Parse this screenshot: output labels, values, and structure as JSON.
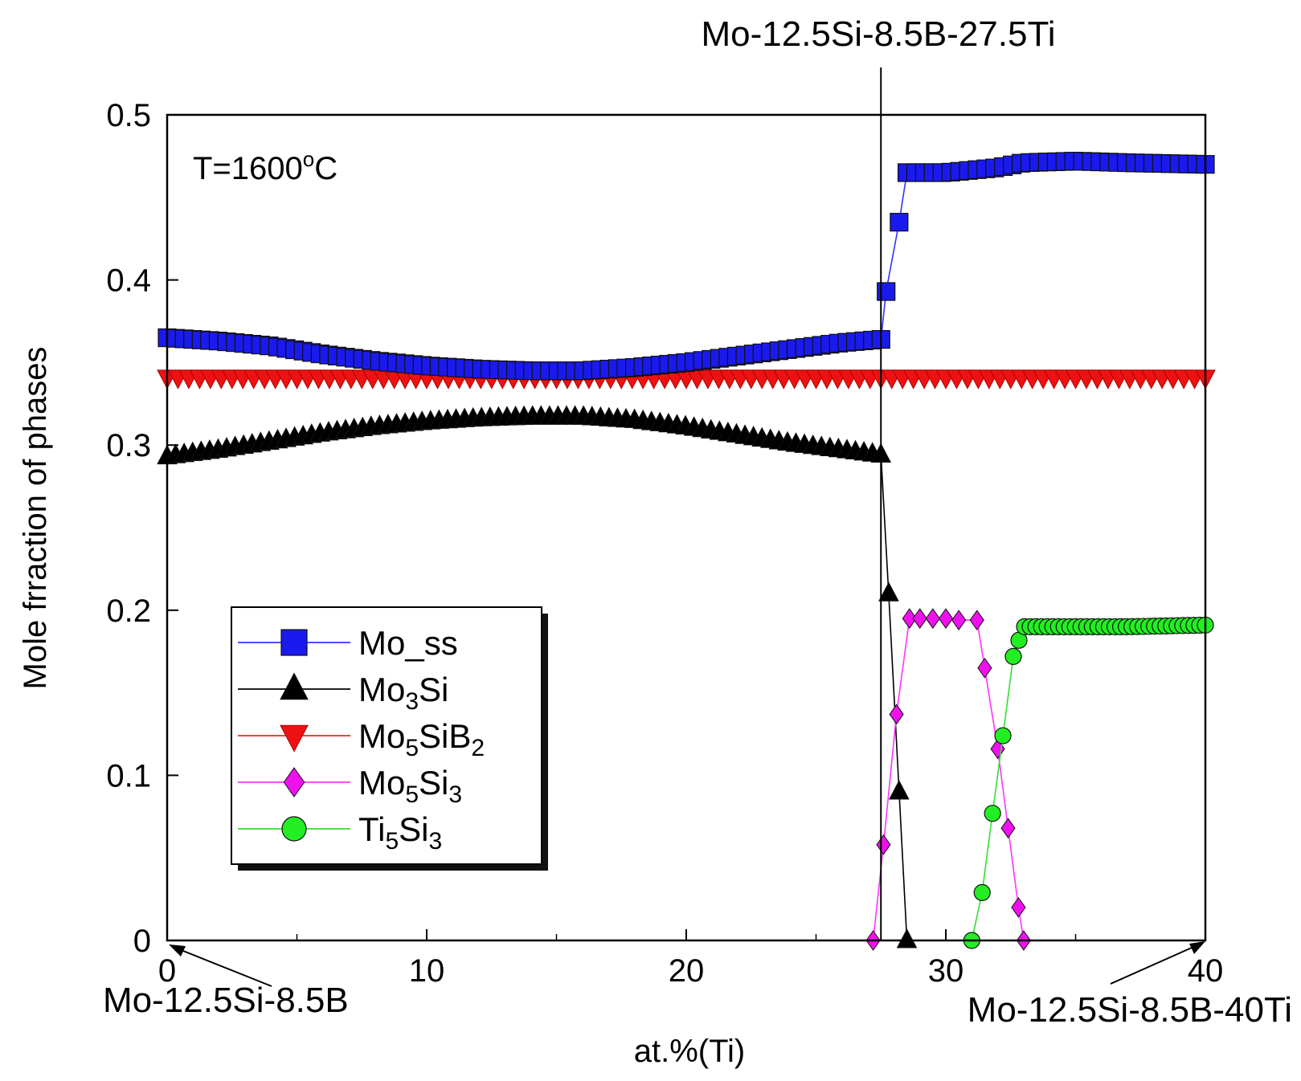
{
  "chart_data": {
    "type": "line",
    "title": "",
    "xlabel": "at.%(Ti)",
    "ylabel": "Mole frraction of phases",
    "xlim": [
      0,
      40
    ],
    "ylim": [
      0,
      0.5
    ],
    "xticks": [
      "0",
      "10",
      "20",
      "30",
      "40"
    ],
    "yticks": [
      "0",
      "0.1",
      "0.2",
      "0.3",
      "0.4",
      "0.5"
    ],
    "grid": false,
    "legend_position": "lower-left",
    "annotations": {
      "temperature": "T=1600",
      "temperature_sup": "o",
      "temperature_unit": "C",
      "top_label": "Mo-12.5Si-8.5B-27.5Ti",
      "left_label": "Mo-12.5Si-8.5B",
      "right_label": "Mo-12.5Si-8.5B-40Ti",
      "divider_x": 27.5
    },
    "series": [
      {
        "name": "Mo_ss",
        "legend": {
          "base": "Mo_ss",
          "parts": []
        },
        "marker": "square",
        "line_color": "#3333ff",
        "fill": "#1a1aee",
        "points": [
          [
            0,
            0.365
          ],
          [
            2,
            0.363
          ],
          [
            4,
            0.36
          ],
          [
            6,
            0.355
          ],
          [
            8,
            0.351
          ],
          [
            10,
            0.348
          ],
          [
            12,
            0.346
          ],
          [
            14,
            0.345
          ],
          [
            16,
            0.345
          ],
          [
            18,
            0.347
          ],
          [
            20,
            0.35
          ],
          [
            22,
            0.354
          ],
          [
            24,
            0.358
          ],
          [
            26,
            0.362
          ],
          [
            27.5,
            0.364
          ],
          [
            27.7,
            0.393
          ],
          [
            28.2,
            0.435
          ],
          [
            28.5,
            0.465
          ],
          [
            30,
            0.465
          ],
          [
            32,
            0.468
          ],
          [
            33,
            0.471
          ],
          [
            35,
            0.472
          ],
          [
            37,
            0.471
          ],
          [
            40,
            0.47
          ]
        ]
      },
      {
        "name": "Mo3Si",
        "legend": {
          "base": "Mo",
          "parts": [
            {
              "t": "3",
              "sub": true
            },
            {
              "t": "Si",
              "sub": false
            }
          ]
        },
        "marker": "triangle-up",
        "line_color": "#000000",
        "fill": "#000000",
        "points": [
          [
            0,
            0.293
          ],
          [
            2,
            0.297
          ],
          [
            4,
            0.302
          ],
          [
            6,
            0.307
          ],
          [
            8,
            0.311
          ],
          [
            10,
            0.314
          ],
          [
            12,
            0.316
          ],
          [
            14,
            0.317
          ],
          [
            16,
            0.317
          ],
          [
            18,
            0.315
          ],
          [
            20,
            0.311
          ],
          [
            22,
            0.306
          ],
          [
            24,
            0.301
          ],
          [
            26,
            0.297
          ],
          [
            27.5,
            0.294
          ],
          [
            27.8,
            0.21
          ],
          [
            28.2,
            0.09
          ],
          [
            28.5,
            0
          ]
        ]
      },
      {
        "name": "Mo5SiB2",
        "legend": {
          "base": "Mo",
          "parts": [
            {
              "t": "5",
              "sub": true
            },
            {
              "t": "SiB",
              "sub": false
            },
            {
              "t": "2",
              "sub": true
            }
          ]
        },
        "marker": "triangle-down",
        "line_color": "#ff2020",
        "fill": "#ee1111",
        "points": [
          [
            0,
            0.341
          ],
          [
            40,
            0.341
          ]
        ]
      },
      {
        "name": "Mo5Si3",
        "legend": {
          "base": "Mo",
          "parts": [
            {
              "t": "5",
              "sub": true
            },
            {
              "t": "Si",
              "sub": false
            },
            {
              "t": "3",
              "sub": true
            }
          ]
        },
        "marker": "diamond",
        "line_color": "#ff33ff",
        "fill": "#ee11ee",
        "points": [
          [
            27.2,
            0
          ],
          [
            27.6,
            0.058
          ],
          [
            28.1,
            0.137
          ],
          [
            28.6,
            0.195
          ],
          [
            29,
            0.195
          ],
          [
            29.5,
            0.195
          ],
          [
            30,
            0.195
          ],
          [
            30.5,
            0.194
          ],
          [
            31.2,
            0.194
          ],
          [
            31.5,
            0.165
          ],
          [
            32,
            0.116
          ],
          [
            32.4,
            0.068
          ],
          [
            32.8,
            0.02
          ],
          [
            33,
            0
          ]
        ]
      },
      {
        "name": "Ti5Si3",
        "legend": {
          "base": "Ti",
          "parts": [
            {
              "t": "5",
              "sub": true
            },
            {
              "t": "Si",
              "sub": false
            },
            {
              "t": "3",
              "sub": true
            }
          ]
        },
        "marker": "circle",
        "line_color": "#33dd33",
        "fill": "#22ee22",
        "points": [
          [
            31,
            0
          ],
          [
            31.4,
            0.029
          ],
          [
            31.8,
            0.077
          ],
          [
            32.2,
            0.124
          ],
          [
            32.6,
            0.172
          ],
          [
            33,
            0.19
          ],
          [
            35,
            0.19
          ],
          [
            37,
            0.19
          ],
          [
            40,
            0.191
          ]
        ]
      }
    ]
  }
}
